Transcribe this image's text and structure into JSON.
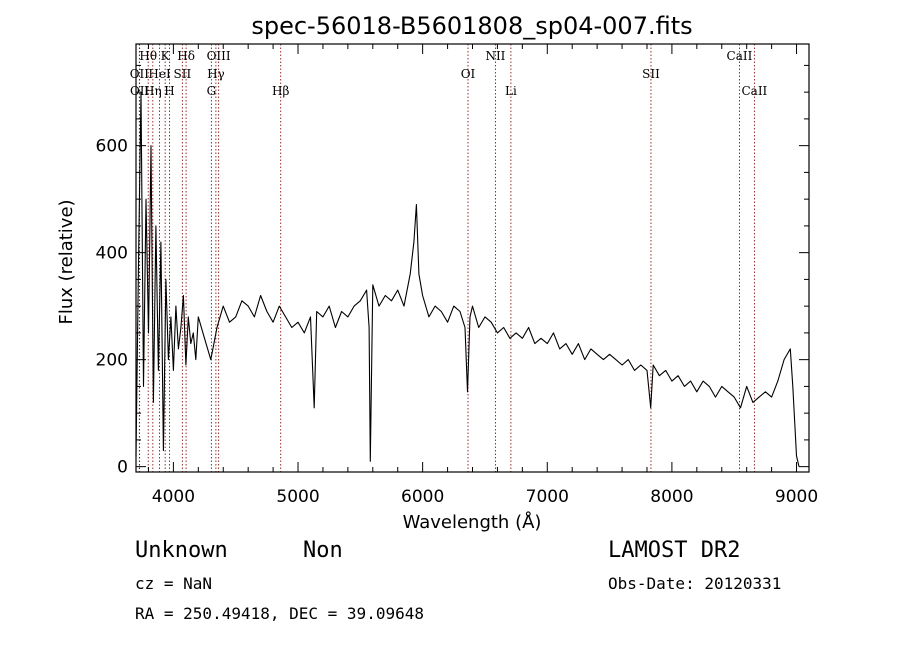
{
  "chart_data": {
    "type": "line",
    "title": "spec-56018-B5601808_sp04-007.fits",
    "xlabel": "Wavelength (Å)",
    "ylabel": "Flux (relative)",
    "xlim": [
      3700,
      9100
    ],
    "ylim": [
      -10,
      790
    ],
    "xticks": [
      4000,
      5000,
      6000,
      7000,
      8000,
      9000
    ],
    "yticks": [
      0,
      200,
      400,
      600
    ],
    "line_color": "#000000",
    "marker_color": "#8b1a1a",
    "spectral_lines": [
      {
        "label": "OII",
        "wavelength": 3727,
        "row": 2
      },
      {
        "label": "OII",
        "wavelength": 3729,
        "row": 3
      },
      {
        "label": "Hθ",
        "wavelength": 3798,
        "row": 1
      },
      {
        "label": "Hη",
        "wavelength": 3835,
        "row": 3
      },
      {
        "label": "HeI",
        "wavelength": 3889,
        "row": 2
      },
      {
        "label": "K",
        "wavelength": 3934,
        "row": 1
      },
      {
        "label": "H",
        "wavelength": 3969,
        "row": 3
      },
      {
        "label": "SII",
        "wavelength": 4072,
        "row": 2
      },
      {
        "label": "Hδ",
        "wavelength": 4102,
        "row": 1
      },
      {
        "label": "G",
        "wavelength": 4305,
        "row": 3
      },
      {
        "label": "Hγ",
        "wavelength": 4341,
        "row": 2
      },
      {
        "label": "OIII",
        "wavelength": 4363,
        "row": 1
      },
      {
        "label": "Hβ",
        "wavelength": 4861,
        "row": 3
      },
      {
        "label": "OI",
        "wavelength": 6364,
        "row": 2
      },
      {
        "label": "NII",
        "wavelength": 6584,
        "row": 1
      },
      {
        "label": "Li",
        "wavelength": 6708,
        "row": 3
      },
      {
        "label": "SII",
        "wavelength": 7832,
        "row": 2
      },
      {
        "label": "CaII",
        "wavelength": 8542,
        "row": 1
      },
      {
        "label": "CaII",
        "wavelength": 8662,
        "row": 3
      }
    ],
    "series": [
      {
        "x": [
          3700,
          3720,
          3740,
          3760,
          3780,
          3800,
          3820,
          3840,
          3860,
          3880,
          3900,
          3920,
          3940,
          3960,
          3980,
          4000,
          4020,
          4040,
          4060,
          4080,
          4100,
          4120,
          4140,
          4160,
          4180,
          4200,
          4250,
          4300,
          4350,
          4400,
          4450,
          4500,
          4550,
          4600,
          4650,
          4700,
          4750,
          4800,
          4850,
          4900,
          4950,
          5000,
          5050,
          5100,
          5130,
          5150,
          5200,
          5250,
          5300,
          5350,
          5400,
          5450,
          5500,
          5550,
          5570,
          5580,
          5600,
          5650,
          5700,
          5750,
          5800,
          5850,
          5900,
          5930,
          5950,
          5970,
          6000,
          6050,
          6100,
          6150,
          6200,
          6250,
          6300,
          6340,
          6360,
          6380,
          6400,
          6450,
          6500,
          6550,
          6600,
          6650,
          6700,
          6750,
          6800,
          6850,
          6900,
          6950,
          7000,
          7050,
          7100,
          7150,
          7200,
          7250,
          7300,
          7350,
          7400,
          7450,
          7500,
          7550,
          7600,
          7650,
          7700,
          7750,
          7800,
          7830,
          7850,
          7900,
          7950,
          8000,
          8050,
          8100,
          8150,
          8200,
          8250,
          8300,
          8350,
          8400,
          8450,
          8500,
          8550,
          8600,
          8650,
          8700,
          8750,
          8800,
          8850,
          8900,
          8950,
          8970,
          9000,
          9020
        ],
        "y": [
          20,
          380,
          700,
          150,
          500,
          250,
          600,
          120,
          450,
          180,
          420,
          30,
          350,
          200,
          280,
          180,
          300,
          220,
          260,
          320,
          190,
          280,
          230,
          250,
          200,
          280,
          240,
          200,
          260,
          300,
          270,
          280,
          310,
          300,
          280,
          320,
          290,
          270,
          300,
          280,
          260,
          270,
          250,
          280,
          110,
          290,
          280,
          300,
          260,
          290,
          280,
          300,
          310,
          330,
          260,
          10,
          340,
          300,
          320,
          310,
          330,
          300,
          360,
          420,
          490,
          360,
          320,
          280,
          300,
          290,
          270,
          300,
          290,
          260,
          140,
          280,
          300,
          260,
          280,
          270,
          250,
          260,
          240,
          250,
          240,
          260,
          230,
          240,
          230,
          250,
          220,
          230,
          210,
          230,
          200,
          220,
          210,
          200,
          210,
          200,
          190,
          200,
          180,
          190,
          180,
          110,
          190,
          170,
          180,
          160,
          170,
          150,
          160,
          140,
          160,
          150,
          130,
          150,
          140,
          130,
          110,
          150,
          120,
          130,
          140,
          130,
          160,
          200,
          220,
          150,
          20,
          0
        ]
      }
    ]
  },
  "footer": {
    "object_class": "Unknown",
    "subclass": "Non",
    "survey": "LAMOST DR2",
    "redshift": "cz = NaN",
    "obs_date": "Obs-Date: 20120331",
    "coords": "RA = 250.49418, DEC =  39.09648"
  }
}
